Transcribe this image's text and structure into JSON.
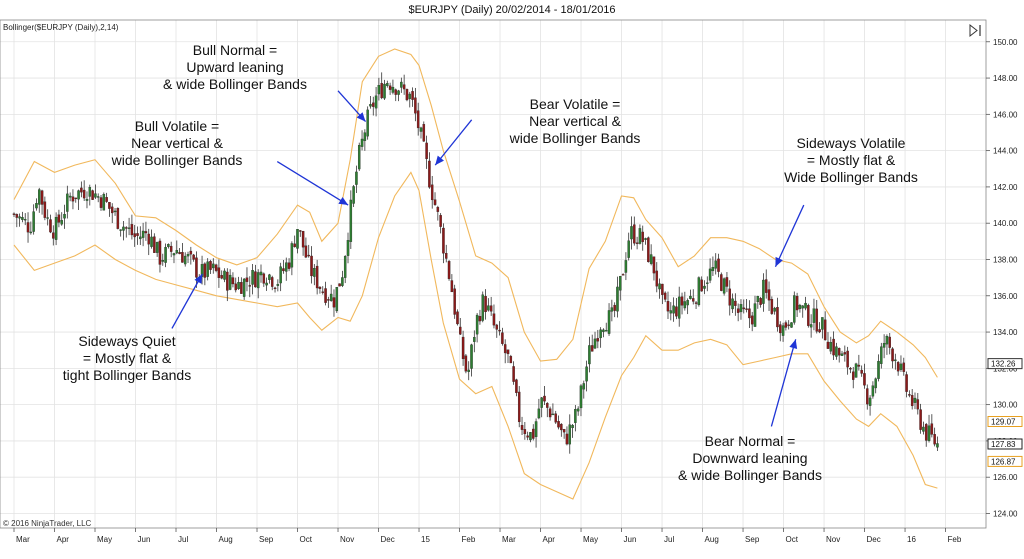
{
  "chart_data": {
    "type": "candlestick",
    "title": "$EURJPY (Daily)  20/02/2014 - 18/01/2016",
    "indicator_label": "Bollinger($EURJPY (Daily),2,14)",
    "copyright": "© 2016 NinjaTrader, LLC",
    "ylim": [
      123.2,
      151.2
    ],
    "xlim": [
      0,
      23.9
    ],
    "yticks": [
      124,
      126,
      128,
      130,
      132,
      134,
      136,
      138,
      140,
      142,
      144,
      146,
      148,
      150
    ],
    "ytick_labels": [
      "124.00",
      "126.00",
      "128.00",
      "130.00",
      "132.00",
      "134.00",
      "136.00",
      "138.00",
      "140.00",
      "142.00",
      "144.00",
      "146.00",
      "148.00",
      "150.00"
    ],
    "xticks": [
      {
        "x": 0.0,
        "label": "Mar"
      },
      {
        "x": 1.0,
        "label": "Apr"
      },
      {
        "x": 2.0,
        "label": "May"
      },
      {
        "x": 3.0,
        "label": "Jun"
      },
      {
        "x": 4.0,
        "label": "Jul"
      },
      {
        "x": 5.0,
        "label": "Aug"
      },
      {
        "x": 6.0,
        "label": "Sep"
      },
      {
        "x": 7.0,
        "label": "Oct"
      },
      {
        "x": 8.0,
        "label": "Nov"
      },
      {
        "x": 9.0,
        "label": "Dec"
      },
      {
        "x": 10.0,
        "label": "15"
      },
      {
        "x": 11.0,
        "label": "Feb"
      },
      {
        "x": 12.0,
        "label": "Mar"
      },
      {
        "x": 13.0,
        "label": "Apr"
      },
      {
        "x": 14.0,
        "label": "May"
      },
      {
        "x": 15.0,
        "label": "Jun"
      },
      {
        "x": 16.0,
        "label": "Jul"
      },
      {
        "x": 17.0,
        "label": "Aug"
      },
      {
        "x": 18.0,
        "label": "Sep"
      },
      {
        "x": 19.0,
        "label": "Oct"
      },
      {
        "x": 20.0,
        "label": "Nov"
      },
      {
        "x": 21.0,
        "label": "Dec"
      },
      {
        "x": 22.0,
        "label": "16"
      },
      {
        "x": 23.0,
        "label": "Feb"
      }
    ],
    "price_path": [
      [
        0.0,
        140.5
      ],
      [
        0.4,
        139.8
      ],
      [
        0.6,
        142.0
      ],
      [
        0.8,
        140.3
      ],
      [
        1.0,
        139.6
      ],
      [
        1.4,
        141.5
      ],
      [
        1.8,
        141.9
      ],
      [
        2.2,
        141.3
      ],
      [
        2.6,
        140.1
      ],
      [
        3.0,
        139.2
      ],
      [
        3.3,
        139.5
      ],
      [
        3.6,
        138.1
      ],
      [
        4.0,
        138.6
      ],
      [
        4.3,
        138.0
      ],
      [
        4.6,
        137.2
      ],
      [
        4.9,
        137.4
      ],
      [
        5.2,
        136.9
      ],
      [
        5.5,
        136.6
      ],
      [
        5.9,
        137.0
      ],
      [
        6.2,
        137.3
      ],
      [
        6.5,
        136.8
      ],
      [
        6.8,
        138.0
      ],
      [
        7.0,
        139.8
      ],
      [
        7.3,
        137.5
      ],
      [
        7.6,
        136.4
      ],
      [
        7.9,
        135.8
      ],
      [
        8.1,
        137.2
      ],
      [
        8.3,
        140.5
      ],
      [
        8.5,
        143.5
      ],
      [
        8.7,
        145.5
      ],
      [
        8.9,
        146.8
      ],
      [
        9.2,
        147.9
      ],
      [
        9.5,
        147.5
      ],
      [
        9.8,
        146.9
      ],
      [
        10.0,
        145.2
      ],
      [
        10.3,
        142.0
      ],
      [
        10.5,
        140.0
      ],
      [
        10.8,
        136.5
      ],
      [
        11.0,
        133.5
      ],
      [
        11.2,
        131.5
      ],
      [
        11.4,
        134.5
      ],
      [
        11.6,
        135.8
      ],
      [
        11.9,
        134.0
      ],
      [
        12.2,
        132.5
      ],
      [
        12.5,
        129.0
      ],
      [
        12.8,
        128.2
      ],
      [
        13.0,
        130.2
      ],
      [
        13.3,
        129.5
      ],
      [
        13.6,
        128.0
      ],
      [
        13.9,
        129.5
      ],
      [
        14.2,
        132.8
      ],
      [
        14.5,
        134.6
      ],
      [
        14.8,
        134.8
      ],
      [
        15.0,
        137.0
      ],
      [
        15.2,
        139.5
      ],
      [
        15.5,
        139.2
      ],
      [
        15.8,
        137.5
      ],
      [
        16.0,
        135.5
      ],
      [
        16.2,
        135.0
      ],
      [
        16.5,
        135.6
      ],
      [
        16.8,
        136.0
      ],
      [
        17.0,
        136.8
      ],
      [
        17.3,
        137.5
      ],
      [
        17.6,
        136.2
      ],
      [
        17.9,
        135.0
      ],
      [
        18.2,
        134.8
      ],
      [
        18.5,
        136.3
      ],
      [
        18.8,
        135.0
      ],
      [
        19.0,
        134.2
      ],
      [
        19.3,
        135.6
      ],
      [
        19.6,
        134.9
      ],
      [
        19.9,
        134.5
      ],
      [
        20.2,
        133.2
      ],
      [
        20.5,
        132.4
      ],
      [
        20.8,
        131.8
      ],
      [
        21.1,
        130.4
      ],
      [
        21.3,
        131.8
      ],
      [
        21.5,
        133.6
      ],
      [
        21.8,
        132.5
      ],
      [
        22.0,
        131.0
      ],
      [
        22.3,
        129.5
      ],
      [
        22.5,
        128.5
      ],
      [
        22.8,
        127.8
      ]
    ],
    "upper_band_path": [
      [
        0.0,
        141.3
      ],
      [
        0.5,
        143.4
      ],
      [
        1.0,
        142.8
      ],
      [
        1.5,
        143.2
      ],
      [
        2.0,
        143.5
      ],
      [
        2.5,
        142.2
      ],
      [
        3.0,
        140.4
      ],
      [
        3.5,
        140.3
      ],
      [
        4.0,
        139.6
      ],
      [
        4.5,
        138.8
      ],
      [
        5.0,
        138.1
      ],
      [
        5.5,
        137.7
      ],
      [
        6.0,
        138.1
      ],
      [
        6.5,
        139.4
      ],
      [
        7.0,
        141.0
      ],
      [
        7.3,
        140.6
      ],
      [
        7.6,
        139.0
      ],
      [
        8.0,
        140.0
      ],
      [
        8.3,
        143.5
      ],
      [
        8.6,
        147.8
      ],
      [
        9.0,
        149.2
      ],
      [
        9.4,
        149.6
      ],
      [
        9.8,
        149.3
      ],
      [
        10.0,
        148.7
      ],
      [
        10.3,
        146.5
      ],
      [
        10.6,
        144.0
      ],
      [
        11.0,
        141.2
      ],
      [
        11.4,
        138.2
      ],
      [
        11.8,
        137.8
      ],
      [
        12.2,
        137.0
      ],
      [
        12.6,
        134.0
      ],
      [
        13.0,
        132.4
      ],
      [
        13.4,
        132.5
      ],
      [
        13.8,
        133.6
      ],
      [
        14.2,
        137.5
      ],
      [
        14.6,
        139.0
      ],
      [
        15.0,
        141.5
      ],
      [
        15.3,
        141.4
      ],
      [
        15.6,
        140.2
      ],
      [
        16.0,
        139.2
      ],
      [
        16.4,
        137.6
      ],
      [
        16.8,
        138.2
      ],
      [
        17.2,
        139.2
      ],
      [
        17.6,
        139.2
      ],
      [
        18.0,
        139.0
      ],
      [
        18.4,
        138.6
      ],
      [
        18.8,
        138.0
      ],
      [
        19.2,
        137.8
      ],
      [
        19.6,
        137.2
      ],
      [
        20.0,
        135.4
      ],
      [
        20.4,
        134.0
      ],
      [
        20.8,
        133.4
      ],
      [
        21.1,
        133.8
      ],
      [
        21.4,
        134.6
      ],
      [
        21.8,
        134.0
      ],
      [
        22.2,
        133.3
      ],
      [
        22.5,
        132.6
      ],
      [
        22.8,
        131.5
      ]
    ],
    "lower_band_path": [
      [
        0.0,
        138.8
      ],
      [
        0.5,
        137.4
      ],
      [
        1.0,
        137.8
      ],
      [
        1.5,
        138.2
      ],
      [
        2.0,
        138.8
      ],
      [
        2.5,
        138.0
      ],
      [
        3.0,
        137.4
      ],
      [
        3.5,
        136.9
      ],
      [
        4.0,
        136.6
      ],
      [
        4.5,
        136.3
      ],
      [
        5.0,
        136.0
      ],
      [
        5.5,
        135.8
      ],
      [
        6.0,
        135.6
      ],
      [
        6.5,
        135.4
      ],
      [
        7.0,
        135.6
      ],
      [
        7.3,
        134.8
      ],
      [
        7.6,
        134.1
      ],
      [
        8.0,
        134.8
      ],
      [
        8.3,
        134.6
      ],
      [
        8.6,
        136.0
      ],
      [
        9.0,
        139.2
      ],
      [
        9.4,
        141.5
      ],
      [
        9.8,
        142.8
      ],
      [
        10.0,
        141.8
      ],
      [
        10.3,
        138.0
      ],
      [
        10.6,
        134.5
      ],
      [
        11.0,
        131.4
      ],
      [
        11.4,
        130.6
      ],
      [
        11.8,
        131.0
      ],
      [
        12.2,
        128.8
      ],
      [
        12.6,
        126.2
      ],
      [
        13.0,
        125.6
      ],
      [
        13.4,
        125.2
      ],
      [
        13.8,
        124.8
      ],
      [
        14.2,
        126.8
      ],
      [
        14.6,
        129.3
      ],
      [
        15.0,
        131.6
      ],
      [
        15.3,
        132.6
      ],
      [
        15.6,
        133.8
      ],
      [
        16.0,
        133.0
      ],
      [
        16.4,
        133.0
      ],
      [
        16.8,
        133.4
      ],
      [
        17.2,
        133.6
      ],
      [
        17.6,
        133.3
      ],
      [
        18.0,
        132.2
      ],
      [
        18.4,
        132.4
      ],
      [
        18.8,
        132.6
      ],
      [
        19.2,
        132.8
      ],
      [
        19.6,
        132.8
      ],
      [
        20.0,
        131.3
      ],
      [
        20.4,
        130.2
      ],
      [
        20.8,
        129.2
      ],
      [
        21.1,
        128.8
      ],
      [
        21.4,
        129.5
      ],
      [
        21.8,
        128.8
      ],
      [
        22.2,
        127.2
      ],
      [
        22.5,
        125.6
      ],
      [
        22.8,
        125.4
      ]
    ],
    "candle_up_color": "#2e7d32",
    "candle_down_color": "#8b1a1a",
    "band_color": "#f1b85c",
    "markers": [
      {
        "value": "132.26",
        "y": 132.26,
        "border": "#333333"
      },
      {
        "value": "129.07",
        "y": 129.07,
        "border": "#e8a020"
      },
      {
        "value": "127.83",
        "y": 127.83,
        "border": "#222222"
      },
      {
        "value": "126.87",
        "y": 126.87,
        "border": "#e8a020"
      }
    ]
  },
  "annotations": {
    "bull_normal": [
      "Bull Normal =",
      "Upward leaning",
      "& wide Bollinger Bands"
    ],
    "bull_volatile": [
      "Bull Volatile =",
      "Near vertical &",
      "wide Bollinger Bands"
    ],
    "bear_volatile": [
      "Bear Volatile =",
      "Near vertical &",
      "wide Bollinger Bands"
    ],
    "sideways_volatile": [
      "Sideways Volatile",
      "= Mostly flat &",
      "Wide Bollinger Bands"
    ],
    "sideways_quiet": [
      "Sideways Quiet",
      "= Mostly flat &",
      "tight Bollinger Bands"
    ],
    "bear_normal": [
      "Bear Normal =",
      "Downward leaning",
      "& wide Bollinger Bands"
    ]
  },
  "arrows": [
    {
      "name": "bull-normal-arrow",
      "from": [
        8.0,
        147.3
      ],
      "to": [
        8.68,
        145.6
      ]
    },
    {
      "name": "bull-volatile-arrow",
      "from": [
        6.5,
        143.4
      ],
      "to": [
        8.25,
        141.0
      ]
    },
    {
      "name": "bear-volatile-arrow",
      "from": [
        11.3,
        145.7
      ],
      "to": [
        10.4,
        143.2
      ]
    },
    {
      "name": "sideways-volatile-arrow",
      "from": [
        19.5,
        141.0
      ],
      "to": [
        18.8,
        137.6
      ]
    },
    {
      "name": "sideways-quiet-arrow",
      "from": [
        3.9,
        134.2
      ],
      "to": [
        4.65,
        137.2
      ]
    },
    {
      "name": "bear-normal-arrow",
      "from": [
        18.7,
        128.8
      ],
      "to": [
        19.3,
        133.6
      ]
    }
  ]
}
